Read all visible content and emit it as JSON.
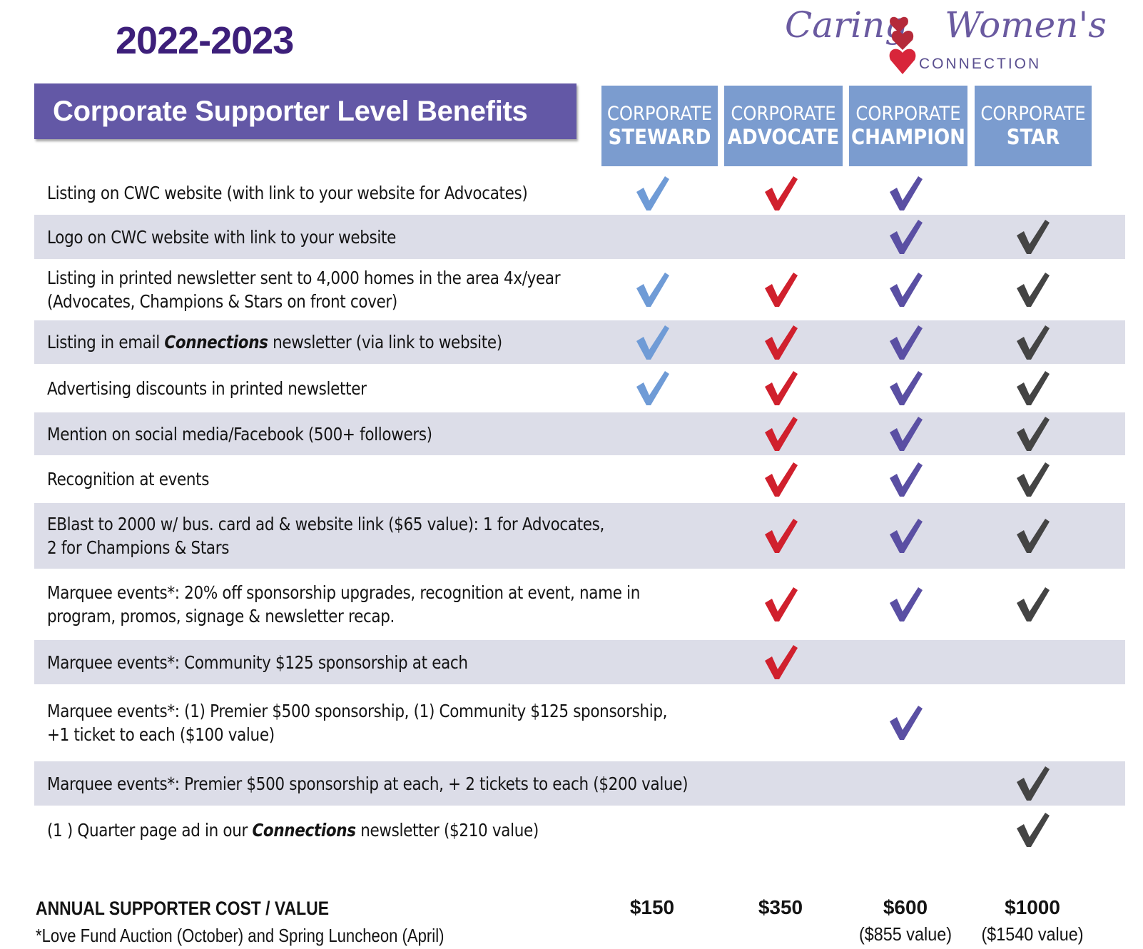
{
  "year": "2022-2023",
  "logo": {
    "word1": "Caring",
    "word2": "Women's",
    "sub": "CONNECTION"
  },
  "banner": "Corporate Supporter Level Benefits",
  "levels": [
    {
      "line1": "CORPORATE",
      "line2": "STEWARD"
    },
    {
      "line1": "CORPORATE",
      "line2": "ADVOCATE"
    },
    {
      "line1": "CORPORATE",
      "line2": "CHAMPION"
    },
    {
      "line1": "CORPORATE",
      "line2": "STAR"
    }
  ],
  "check_colors": [
    "#6f9bd6",
    "#d0202d",
    "#5a4fa3",
    "#444444"
  ],
  "benefits": [
    {
      "lines": [
        "Listing on CWC website (with link to your website for Advocates)"
      ],
      "checks": [
        true,
        true,
        true,
        false
      ]
    },
    {
      "lines": [
        "Logo on CWC website with link to your website"
      ],
      "checks": [
        false,
        false,
        true,
        true
      ]
    },
    {
      "lines": [
        "Listing in printed newsletter sent to 4,000 homes in the area 4x/year",
        "(Advocates, Champions & Stars on front cover)"
      ],
      "checks": [
        true,
        true,
        true,
        true
      ]
    },
    {
      "lines": [
        "Listing in email ",
        "Connections",
        " newsletter (via link to website)"
      ],
      "italic_mid": true,
      "checks": [
        true,
        true,
        true,
        true
      ]
    },
    {
      "lines": [
        "Advertising discounts in printed newsletter"
      ],
      "checks": [
        true,
        true,
        true,
        true
      ]
    },
    {
      "lines": [
        "Mention on social media/Facebook (500+ followers)"
      ],
      "checks": [
        false,
        true,
        true,
        true
      ]
    },
    {
      "lines": [
        "Recognition at events"
      ],
      "checks": [
        false,
        true,
        true,
        true
      ]
    },
    {
      "lines": [
        "EBlast to 2000 w/ bus. card ad & website link ($65 value): 1 for Advocates,",
        "2 for Champions & Stars"
      ],
      "checks": [
        false,
        true,
        true,
        true
      ]
    },
    {
      "lines": [
        "Marquee events*: 20% off sponsorship upgrades, recognition at event, name in",
        "program, promos, signage & newsletter recap."
      ],
      "checks": [
        false,
        true,
        true,
        true
      ]
    },
    {
      "lines": [
        "Marquee events*: Community $125 sponsorship at each"
      ],
      "checks": [
        false,
        true,
        false,
        false
      ]
    },
    {
      "lines": [
        "Marquee events*: (1) Premier $500 sponsorship, (1) Community $125 sponsorship,",
        "+1 ticket to each ($100 value)"
      ],
      "checks": [
        false,
        false,
        true,
        false
      ]
    },
    {
      "lines": [
        "Marquee events*:  Premier $500 sponsorship at each, + 2 tickets to each ($200 value)"
      ],
      "checks": [
        false,
        false,
        false,
        true
      ]
    },
    {
      "lines": [
        "(1 ) Quarter page ad in our ",
        "Connections",
        " newsletter ($210 value)"
      ],
      "italic_mid": true,
      "checks": [
        false,
        false,
        false,
        true
      ]
    }
  ],
  "footer": {
    "label": "ANNUAL SUPPORTER COST / VALUE",
    "note": "*Love Fund Auction (October) and Spring Luncheon (April)",
    "prices": [
      "$150",
      "$350",
      "$600",
      "$1000"
    ],
    "values": [
      "",
      "",
      "($855 value)",
      "($1540 value)"
    ]
  }
}
